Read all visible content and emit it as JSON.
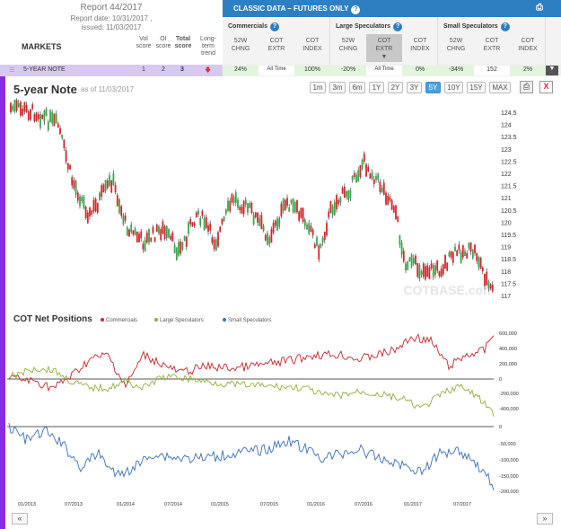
{
  "report": {
    "title": "Report 44/2017",
    "date": "Report date: 10/31/2017 ,",
    "issued": "issued: 11/03/2017"
  },
  "markets_label": "MARKETS",
  "score_headers": [
    "Vol\nscore",
    "OI\nscore",
    "Total\nscore",
    "Long-term\ntrend"
  ],
  "topbar": {
    "title": "CLASSIC DATA – FUTURES ONLY"
  },
  "groups": [
    {
      "title": "Commercials",
      "cols": [
        "52W\nCHNG",
        "COT\nEXTR",
        "COT\nINDEX"
      ]
    },
    {
      "title": "Large Speculators",
      "cols": [
        "52W\nCHNG",
        "COT\nEXTR",
        "COT\nINDEX"
      ]
    },
    {
      "title": "Small Speculators",
      "cols": [
        "52W\nCHNG",
        "COT\nEXTR",
        "COT\nINDEX"
      ]
    }
  ],
  "market_row": {
    "name": "5-YEAR NOTE",
    "vol": "1",
    "oi": "2",
    "total": "3",
    "values": [
      "24%",
      "All Time",
      "100%",
      "-20%",
      "All Time",
      "0%",
      "-34%",
      "152",
      "2%"
    ]
  },
  "chart": {
    "title": "5-year Note",
    "asof": "as of 11/03/2017",
    "zoom": [
      "1m",
      "3m",
      "6m",
      "1Y",
      "2Y",
      "3Y",
      "5Y",
      "10Y",
      "15Y",
      "MAX"
    ],
    "active_zoom": "5Y",
    "close_label": "X",
    "watermark": "COTBASE.com"
  },
  "cot": {
    "title": "COT Net Positions",
    "legend": [
      "Commercials",
      "Large Speculators",
      "Small Speculators"
    ]
  },
  "colors": {
    "commercials": "#c1272d",
    "large": "#8fae3b",
    "small": "#3a6fb5",
    "accent": "#2d7fc1"
  },
  "chart_data": {
    "type": "line",
    "price_axis": [
      "124.5",
      "124",
      "123.5",
      "123",
      "122.5",
      "122",
      "121.5",
      "121",
      "120.5",
      "120",
      "119.5",
      "119",
      "118.5",
      "118",
      "117.5",
      "117"
    ],
    "net_axis_top": [
      "600,000",
      "400,000",
      "200,000",
      "0",
      "-200,000",
      "-400,000"
    ],
    "net_axis_bottom": [
      "0",
      "-50,000",
      "-100,000",
      "-150,000",
      "-200,000"
    ],
    "x_labels": [
      "01/2013",
      "07/2013",
      "01/2014",
      "07/2014",
      "01/2015",
      "07/2015",
      "01/2016",
      "07/2016",
      "01/2017",
      "07/2017"
    ]
  },
  "nav": {
    "prev": "«",
    "next": "»"
  }
}
